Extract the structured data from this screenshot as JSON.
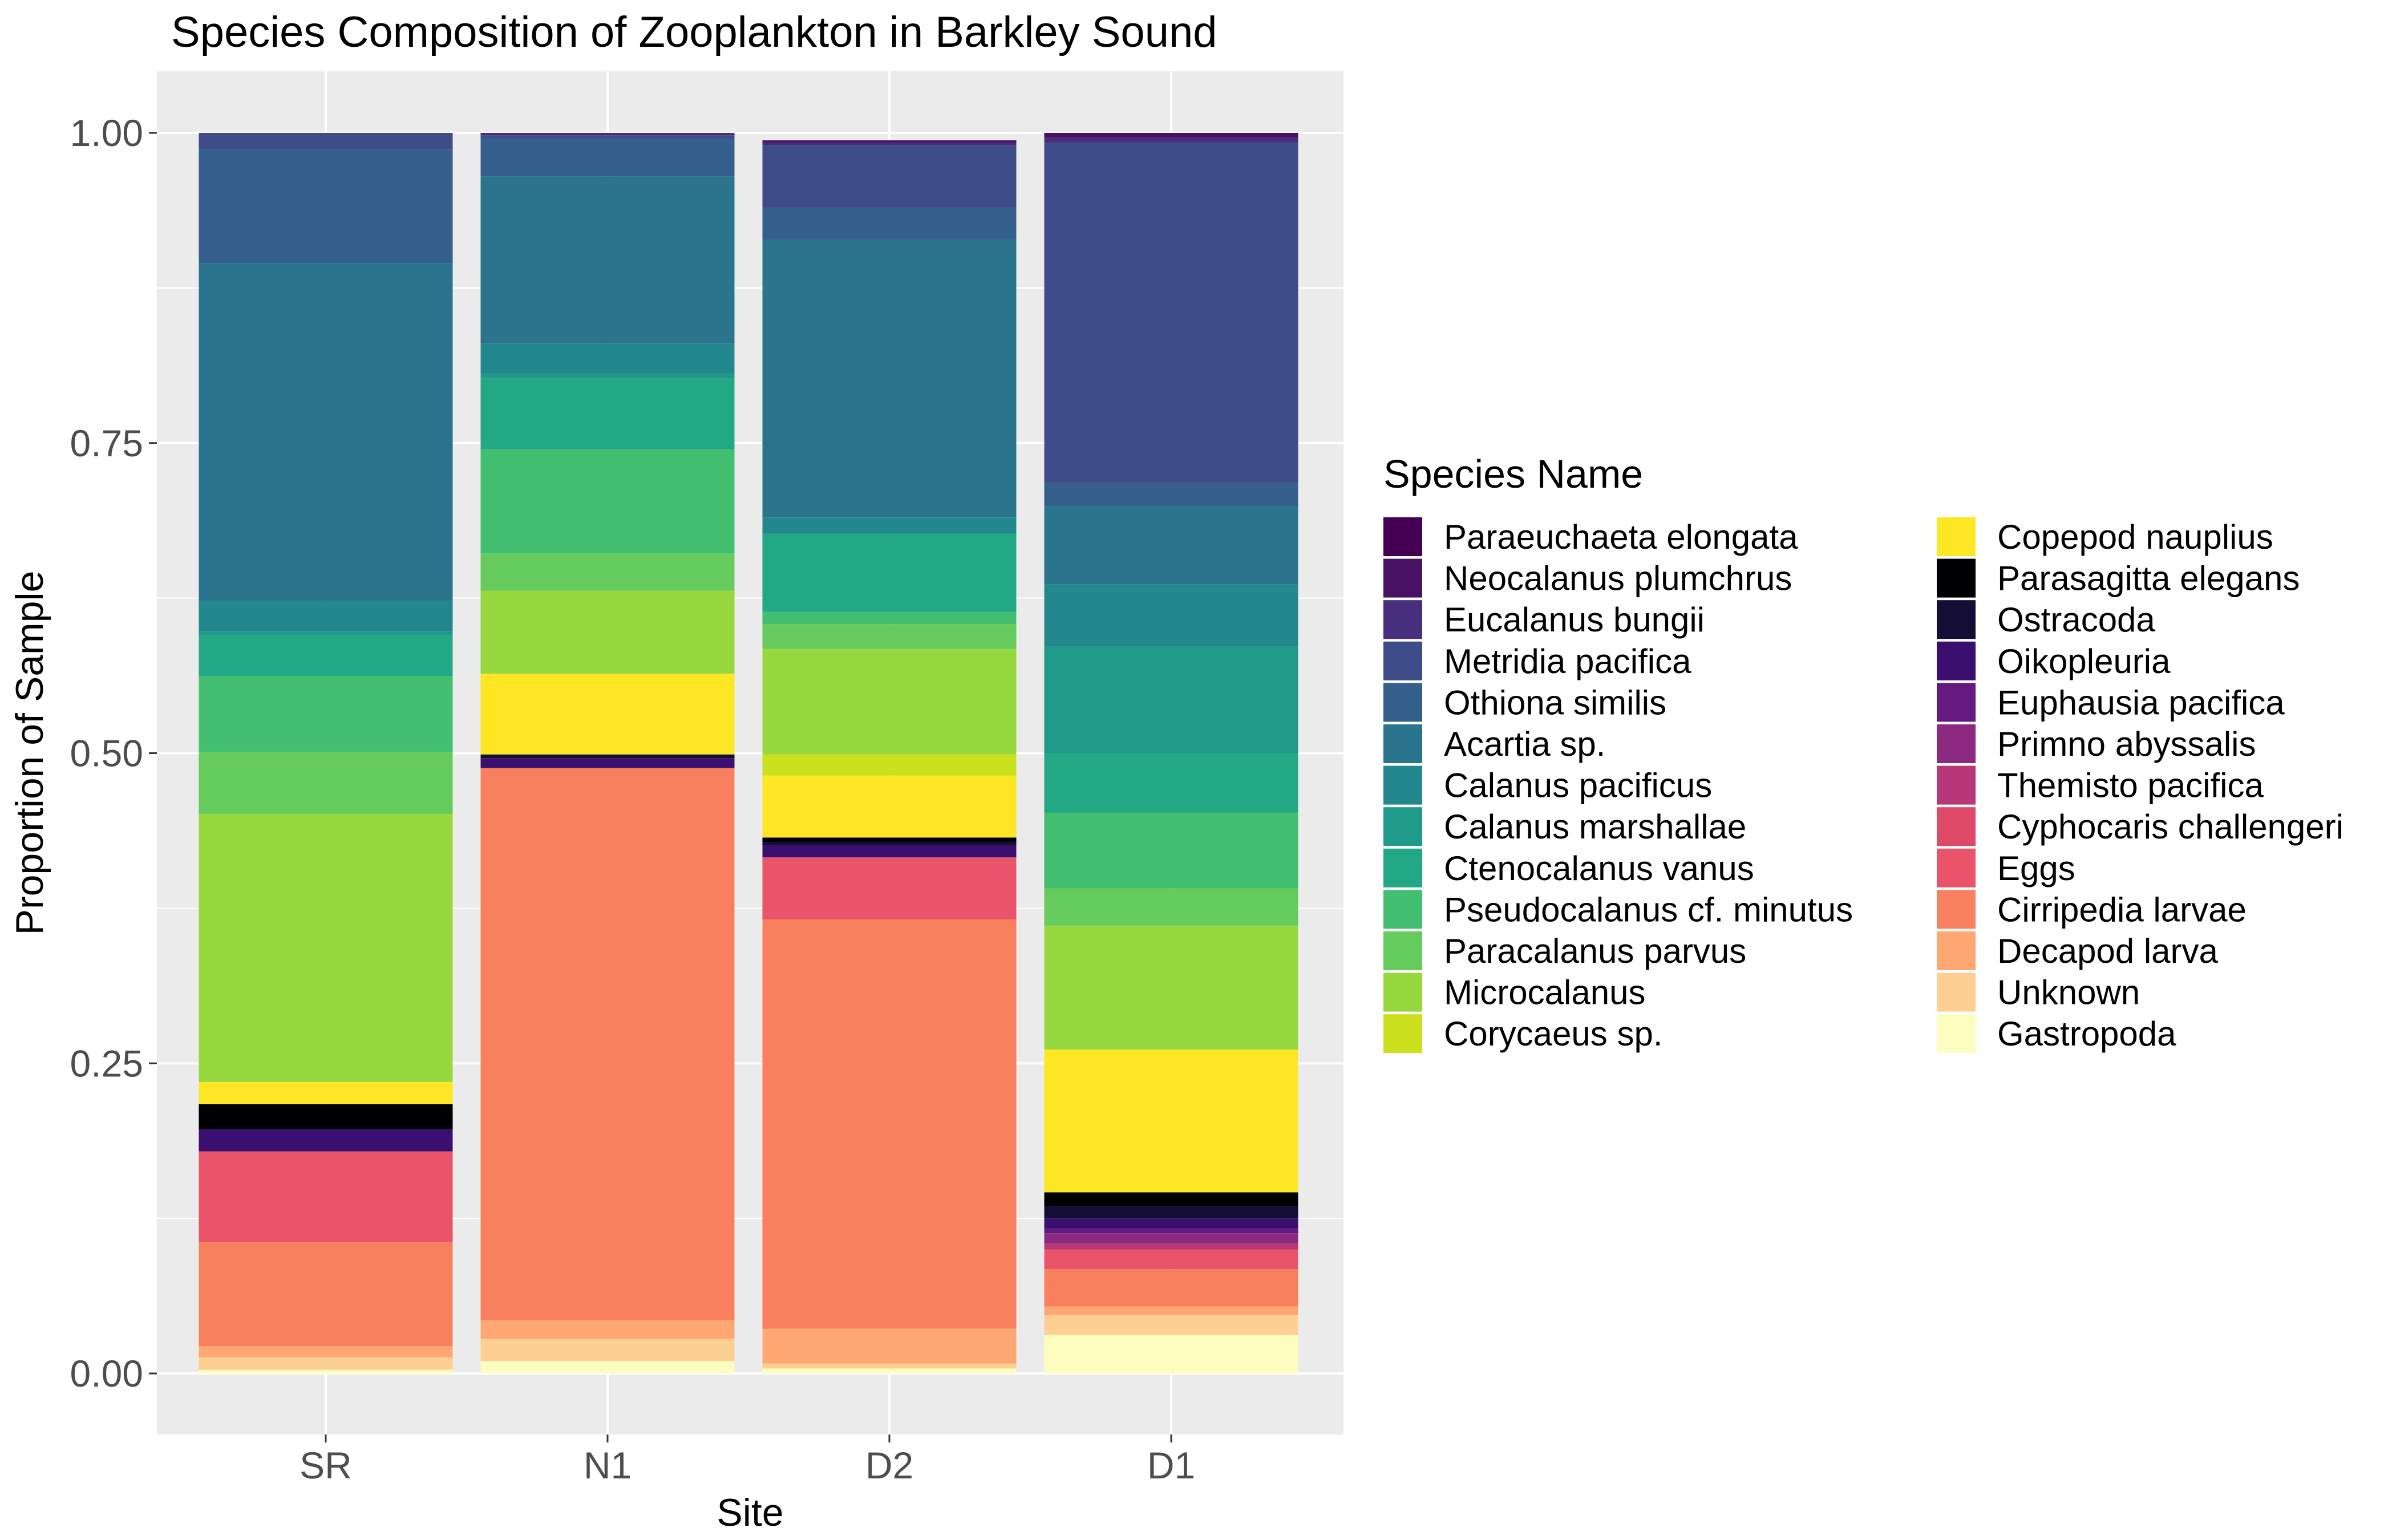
{
  "chart_data": {
    "type": "bar",
    "stacked": true,
    "title": "Species Composition of Zooplankton in Barkley Sound",
    "xlabel": "Site",
    "ylabel": "Proportion of Sample",
    "ylim": [
      0,
      1
    ],
    "yticks": [
      "0.00",
      "0.25",
      "0.50",
      "0.75",
      "1.00"
    ],
    "grid": true,
    "legend_title": "Species Name",
    "legend_position": "right",
    "categories": [
      "SR",
      "N1",
      "D2",
      "D1"
    ],
    "series": [
      {
        "name": "Paraeuchaeta elongata",
        "color": "#440154",
        "values": [
          0,
          0,
          0,
          0
        ]
      },
      {
        "name": "Neocalanus plumchrus",
        "color": "#471164",
        "values": [
          0,
          0,
          0.002,
          0.004
        ]
      },
      {
        "name": "Eucalanus bungii",
        "color": "#472f7d",
        "values": [
          0,
          0.002,
          0.002,
          0.004
        ]
      },
      {
        "name": "Metridia pacifica",
        "color": "#3e4c8a",
        "values": [
          0.013,
          0.003,
          0.05,
          0.274
        ]
      },
      {
        "name": "Othiona similis",
        "color": "#355f8d",
        "values": [
          0.092,
          0.03,
          0.026,
          0.019
        ]
      },
      {
        "name": "Acartia sp.",
        "color": "#2b748e",
        "values": [
          0.272,
          0.135,
          0.224,
          0.063
        ]
      },
      {
        "name": "Calanus pacificus",
        "color": "#23888e",
        "values": [
          0.025,
          0.024,
          0.013,
          0.05
        ]
      },
      {
        "name": "Calanus marshallae",
        "color": "#1f9a8a",
        "values": [
          0.003,
          0.004,
          0,
          0.086
        ]
      },
      {
        "name": "Ctenocalanus vanus",
        "color": "#22a884",
        "values": [
          0.033,
          0.057,
          0.063,
          0.048
        ]
      },
      {
        "name": "Pseudocalanus cf. minutus",
        "color": "#43bf71",
        "values": [
          0.061,
          0.084,
          0.01,
          0.061
        ]
      },
      {
        "name": "Paracalanus parvus",
        "color": "#66cb5d",
        "values": [
          0.05,
          0.03,
          0.02,
          0.03
        ]
      },
      {
        "name": "Microcalanus",
        "color": "#97d83f",
        "values": [
          0.216,
          0.067,
          0.085,
          0.1
        ]
      },
      {
        "name": "Corycaeus sp.",
        "color": "#cbe11e",
        "values": [
          0,
          0,
          0.017,
          0
        ]
      },
      {
        "name": "Copepod nauplius",
        "color": "#fde725",
        "values": [
          0.018,
          0.065,
          0.05,
          0.115
        ]
      },
      {
        "name": "Parasagitta elegans",
        "color": "#000004",
        "values": [
          0.02,
          0,
          0.004,
          0.011
        ]
      },
      {
        "name": "Ostracoda",
        "color": "#140e36",
        "values": [
          0,
          0.003,
          0.002,
          0.01
        ]
      },
      {
        "name": "Oikopleuria",
        "color": "#3b0f70",
        "values": [
          0.018,
          0.008,
          0.01,
          0.008
        ]
      },
      {
        "name": "Euphausia pacifica",
        "color": "#641a80",
        "values": [
          0,
          0,
          0,
          0.004
        ]
      },
      {
        "name": "Primno abyssalis",
        "color": "#8c2981",
        "values": [
          0,
          0,
          0,
          0.008
        ]
      },
      {
        "name": "Themisto pacifica",
        "color": "#b73779",
        "values": [
          0,
          0,
          0,
          0.005
        ]
      },
      {
        "name": "Cyphocaris challengeri",
        "color": "#de4968",
        "values": [
          0,
          0,
          0,
          0
        ]
      },
      {
        "name": "Eggs",
        "color": "#e9546a",
        "values": [
          0.073,
          0,
          0.05,
          0.016
        ]
      },
      {
        "name": "Cirripedia larvae",
        "color": "#f8805f",
        "values": [
          0.084,
          0.445,
          0.33,
          0.03
        ]
      },
      {
        "name": "Decapod larva",
        "color": "#fea772",
        "values": [
          0.009,
          0.015,
          0.028,
          0.007
        ]
      },
      {
        "name": "Unknown",
        "color": "#fecf92",
        "values": [
          0.01,
          0.018,
          0.004,
          0.016
        ]
      },
      {
        "name": "Gastropoda",
        "color": "#fcfdbf",
        "values": [
          0.003,
          0.01,
          0.004,
          0.031
        ]
      }
    ]
  }
}
